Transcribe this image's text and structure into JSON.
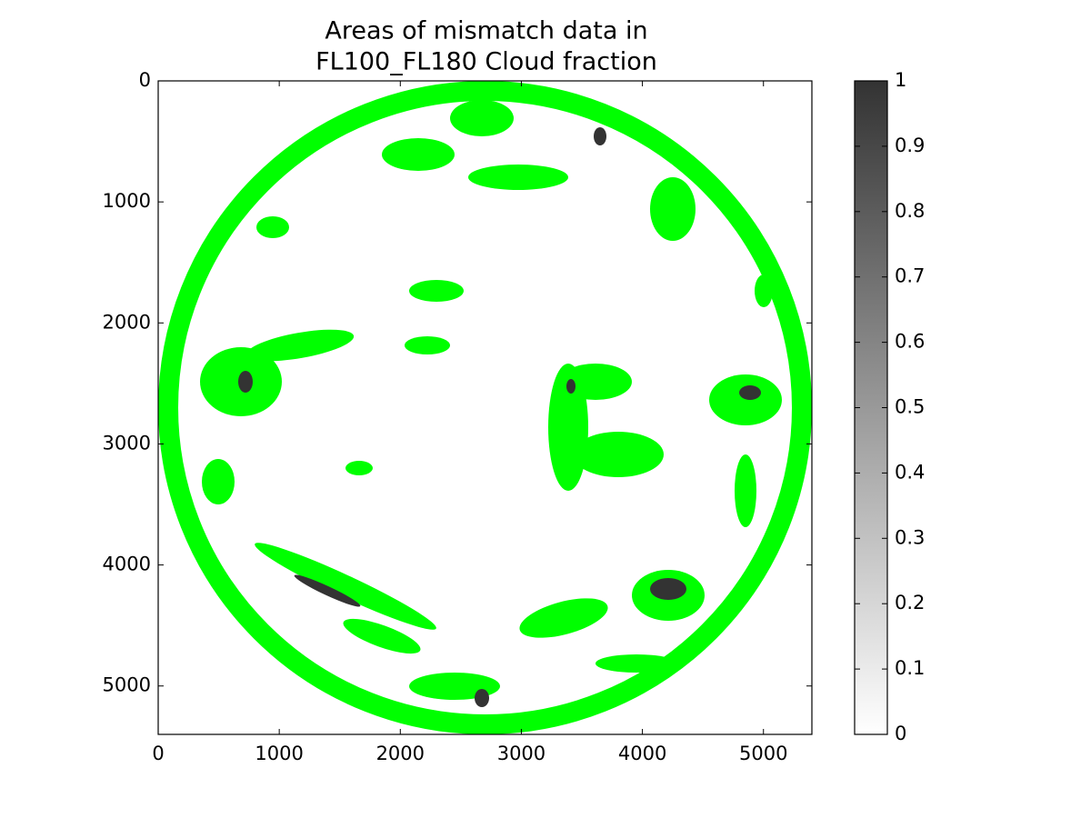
{
  "chart_data": {
    "type": "image",
    "title": [
      "Areas of mismatch data in",
      "FL100_FL180 Cloud fraction"
    ],
    "xlim": [
      0,
      5400
    ],
    "xticks": [
      0,
      1000,
      2000,
      3000,
      4000,
      5000
    ],
    "ylim": [
      5400,
      0
    ],
    "yticks": [
      0,
      1000,
      2000,
      3000,
      4000,
      5000
    ],
    "mask_color": "#00ff00",
    "colorbar": {
      "lim": [
        0,
        1
      ],
      "ticks": [
        0,
        0.1,
        0.2,
        0.3,
        0.4,
        0.5,
        0.6,
        0.7,
        0.8,
        0.9,
        1
      ],
      "colors": [
        "#ffffff",
        "#333333"
      ]
    }
  }
}
